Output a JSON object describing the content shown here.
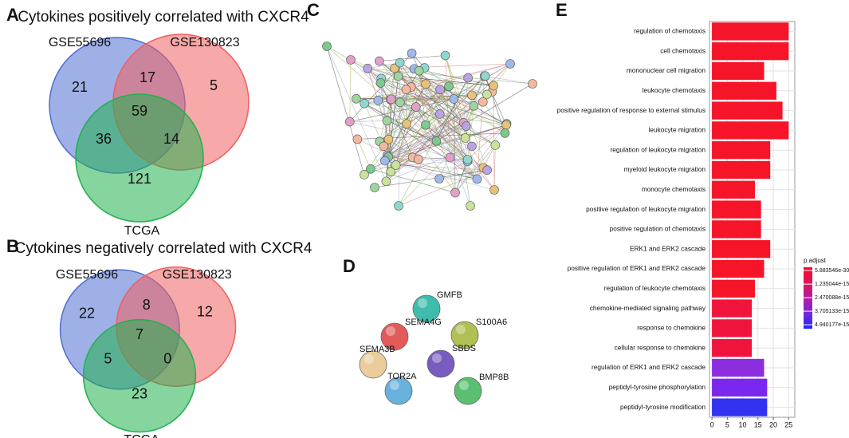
{
  "chart_data": [
    {
      "type": "venn",
      "panel": "A",
      "title": "Cytokines positively correlated with CXCR4",
      "sets": [
        {
          "name": "GSE55696",
          "color": "#4f6fd0"
        },
        {
          "name": "GSE130823",
          "color": "#f06060"
        },
        {
          "name": "TCGA",
          "color": "#22b04e"
        }
      ],
      "region_names": [
        "A only",
        "A∩B",
        "B only",
        "A∩B∩C",
        "A∩C",
        "B∩C",
        "C only"
      ],
      "counts": [
        21,
        17,
        5,
        59,
        36,
        14,
        121
      ]
    },
    {
      "type": "venn",
      "panel": "B",
      "title": "Cytokines negatively correlated with CXCR4",
      "sets": [
        {
          "name": "GSE55696",
          "color": "#4f6fd0"
        },
        {
          "name": "GSE130823",
          "color": "#f06060"
        },
        {
          "name": "TCGA",
          "color": "#22b04e"
        }
      ],
      "region_names": [
        "A only",
        "A∩B",
        "B only",
        "A∩B∩C",
        "A∩C",
        "B∩C",
        "C only"
      ],
      "counts": [
        22,
        8,
        12,
        7,
        5,
        0,
        23
      ]
    },
    {
      "type": "bar",
      "panel": "E",
      "orientation": "horizontal",
      "categories": [
        "regulation of chemotaxis",
        "cell chemotaxis",
        "mononuclear cell migration",
        "leukocyte chemotaxis",
        "positive regulation of response to external stimulus",
        "leukocyte migration",
        "regulation of leukocyte migration",
        "myeloid leukocyte migration",
        "monocyte chemotaxis",
        "positive regulation of leukocyte migration",
        "positive regulation of chemotaxis",
        "ERK1 and ERK2 cascade",
        "positive regulation of ERK1 and ERK2 cascade",
        "regulation of leukocyte chemotaxis",
        "chemokine-mediated signaling pathway",
        "response to chemokine",
        "cellular response to chemokine",
        "regulation of ERK1 and ERK2 cascade",
        "peptidyl-tyrosine phosphorylation",
        "peptidyl-tyrosine modification"
      ],
      "values": [
        25,
        25,
        17,
        21,
        23,
        25,
        19,
        19,
        14,
        16,
        16,
        19,
        17,
        14,
        13,
        13,
        13,
        17,
        18,
        18
      ],
      "colors": [
        "#f51428",
        "#f51428",
        "#f51428",
        "#f51428",
        "#f51428",
        "#f51428",
        "#f51428",
        "#f51428",
        "#f51428",
        "#f51428",
        "#f51428",
        "#f51428",
        "#f51428",
        "#f51428",
        "#f0143c",
        "#f0143c",
        "#f0143c",
        "#8c2ee0",
        "#7a28ee",
        "#3232f0"
      ],
      "xlim": [
        -0.8,
        27
      ],
      "xticks": [
        0,
        5,
        10,
        15,
        20,
        25
      ],
      "grid": true,
      "colorbar": {
        "title": "p.adjust",
        "colors": [
          "#ff0a28",
          "#e0145a",
          "#b41ea0",
          "#7828dc",
          "#1e28ff"
        ],
        "lim": [
          -3e-16,
          5.3e-15
        ],
        "ticks": [
          5.883546e-30,
          1.235044e-15,
          2.470088e-15,
          3.705133e-15,
          4.940177e-15
        ]
      }
    }
  ],
  "diagrams": {
    "network": {
      "panel": "C"
    },
    "small_network": {
      "panel": "D",
      "nodes": [
        "GMFB",
        "SEMA4G",
        "S100A6",
        "SEMA3B",
        "SBDS",
        "TOR2A",
        "BMP8B"
      ]
    }
  }
}
